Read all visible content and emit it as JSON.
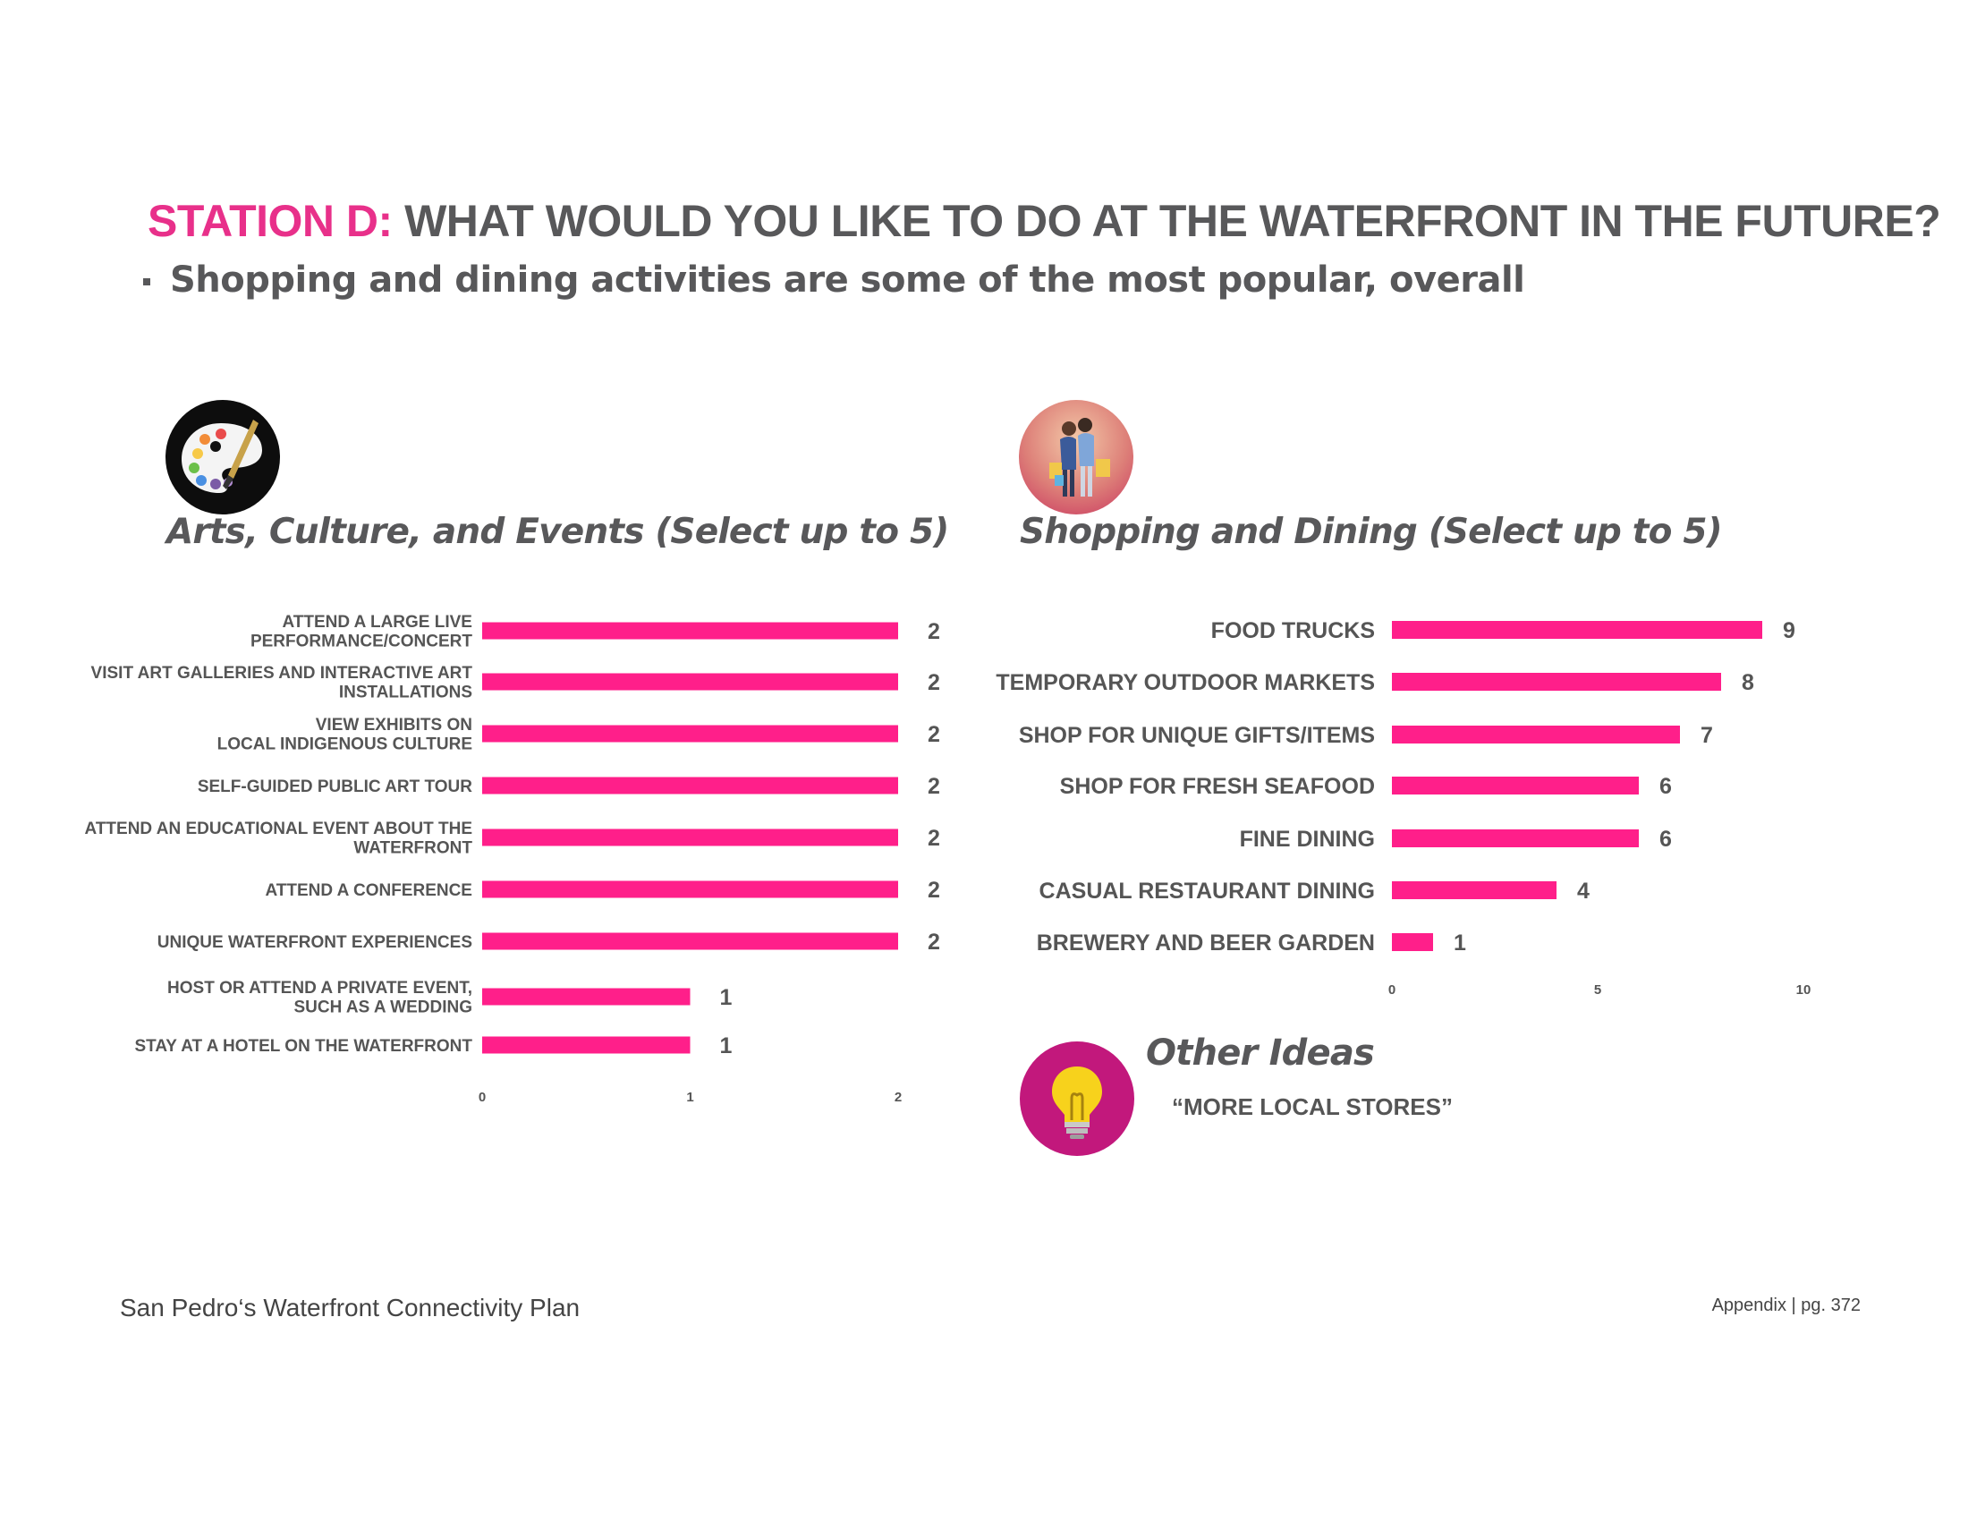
{
  "header": {
    "station_label": "STATION D:",
    "question": " WHAT WOULD YOU LIKE TO DO AT THE WATERFRONT IN THE FUTURE?",
    "bullet": "Shopping and dining activities are some of the most popular, overall"
  },
  "colors": {
    "accent": "#e8308a",
    "bar": "#ff1f8a",
    "text": "#555555"
  },
  "icons": {
    "arts": "paint-palette-icon",
    "shopping": "shoppers-icon",
    "ideas": "lightbulb-icon"
  },
  "chart_data": [
    {
      "type": "bar",
      "orientation": "horizontal",
      "title": "Arts, Culture, and Events (Select up to 5)",
      "categories": [
        [
          "ATTEND A LARGE LIVE",
          "PERFORMANCE/CONCERT"
        ],
        [
          "VISIT ART GALLERIES AND INTERACTIVE   ART",
          "INSTALLATIONS"
        ],
        [
          "VIEW EXHIBITS ON",
          "LOCAL INDIGENOUS CULTURE"
        ],
        [
          "SELF-GUIDED PUBLIC ART TOUR"
        ],
        [
          "ATTEND AN EDUCATIONAL EVENT ABOUT THE",
          "WATERFRONT"
        ],
        [
          "ATTEND A CONFERENCE"
        ],
        [
          "UNIQUE WATERFRONT EXPERIENCES"
        ],
        [
          "HOST OR ATTEND A PRIVATE EVENT,",
          "SUCH AS A WEDDING"
        ],
        [
          "STAY AT A HOTEL ON THE WATERFRONT"
        ]
      ],
      "values": [
        2,
        2,
        2,
        2,
        2,
        2,
        2,
        1,
        1
      ],
      "xlim": [
        0,
        2
      ],
      "ticks": [
        0,
        1,
        2
      ]
    },
    {
      "type": "bar",
      "orientation": "horizontal",
      "title": "Shopping and Dining (Select up to 5)",
      "categories": [
        [
          "FOOD TRUCKS"
        ],
        [
          "TEMPORARY OUTDOOR MARKETS"
        ],
        [
          "SHOP FOR UNIQUE GIFTS/ITEMS"
        ],
        [
          "SHOP FOR FRESH SEAFOOD"
        ],
        [
          "FINE DINING"
        ],
        [
          "CASUAL RESTAURANT DINING"
        ],
        [
          "BREWERY AND BEER GARDEN"
        ]
      ],
      "values": [
        9,
        8,
        7,
        6,
        6,
        4,
        1
      ],
      "xlim": [
        0,
        10
      ],
      "ticks": [
        0,
        5,
        10
      ]
    }
  ],
  "other_ideas": {
    "title": "Other Ideas",
    "items": [
      "“MORE LOCAL STORES”"
    ]
  },
  "footer": {
    "left": "San Pedro‘s Waterfront Connectivity Plan",
    "right": "Appendix | pg. 372"
  }
}
